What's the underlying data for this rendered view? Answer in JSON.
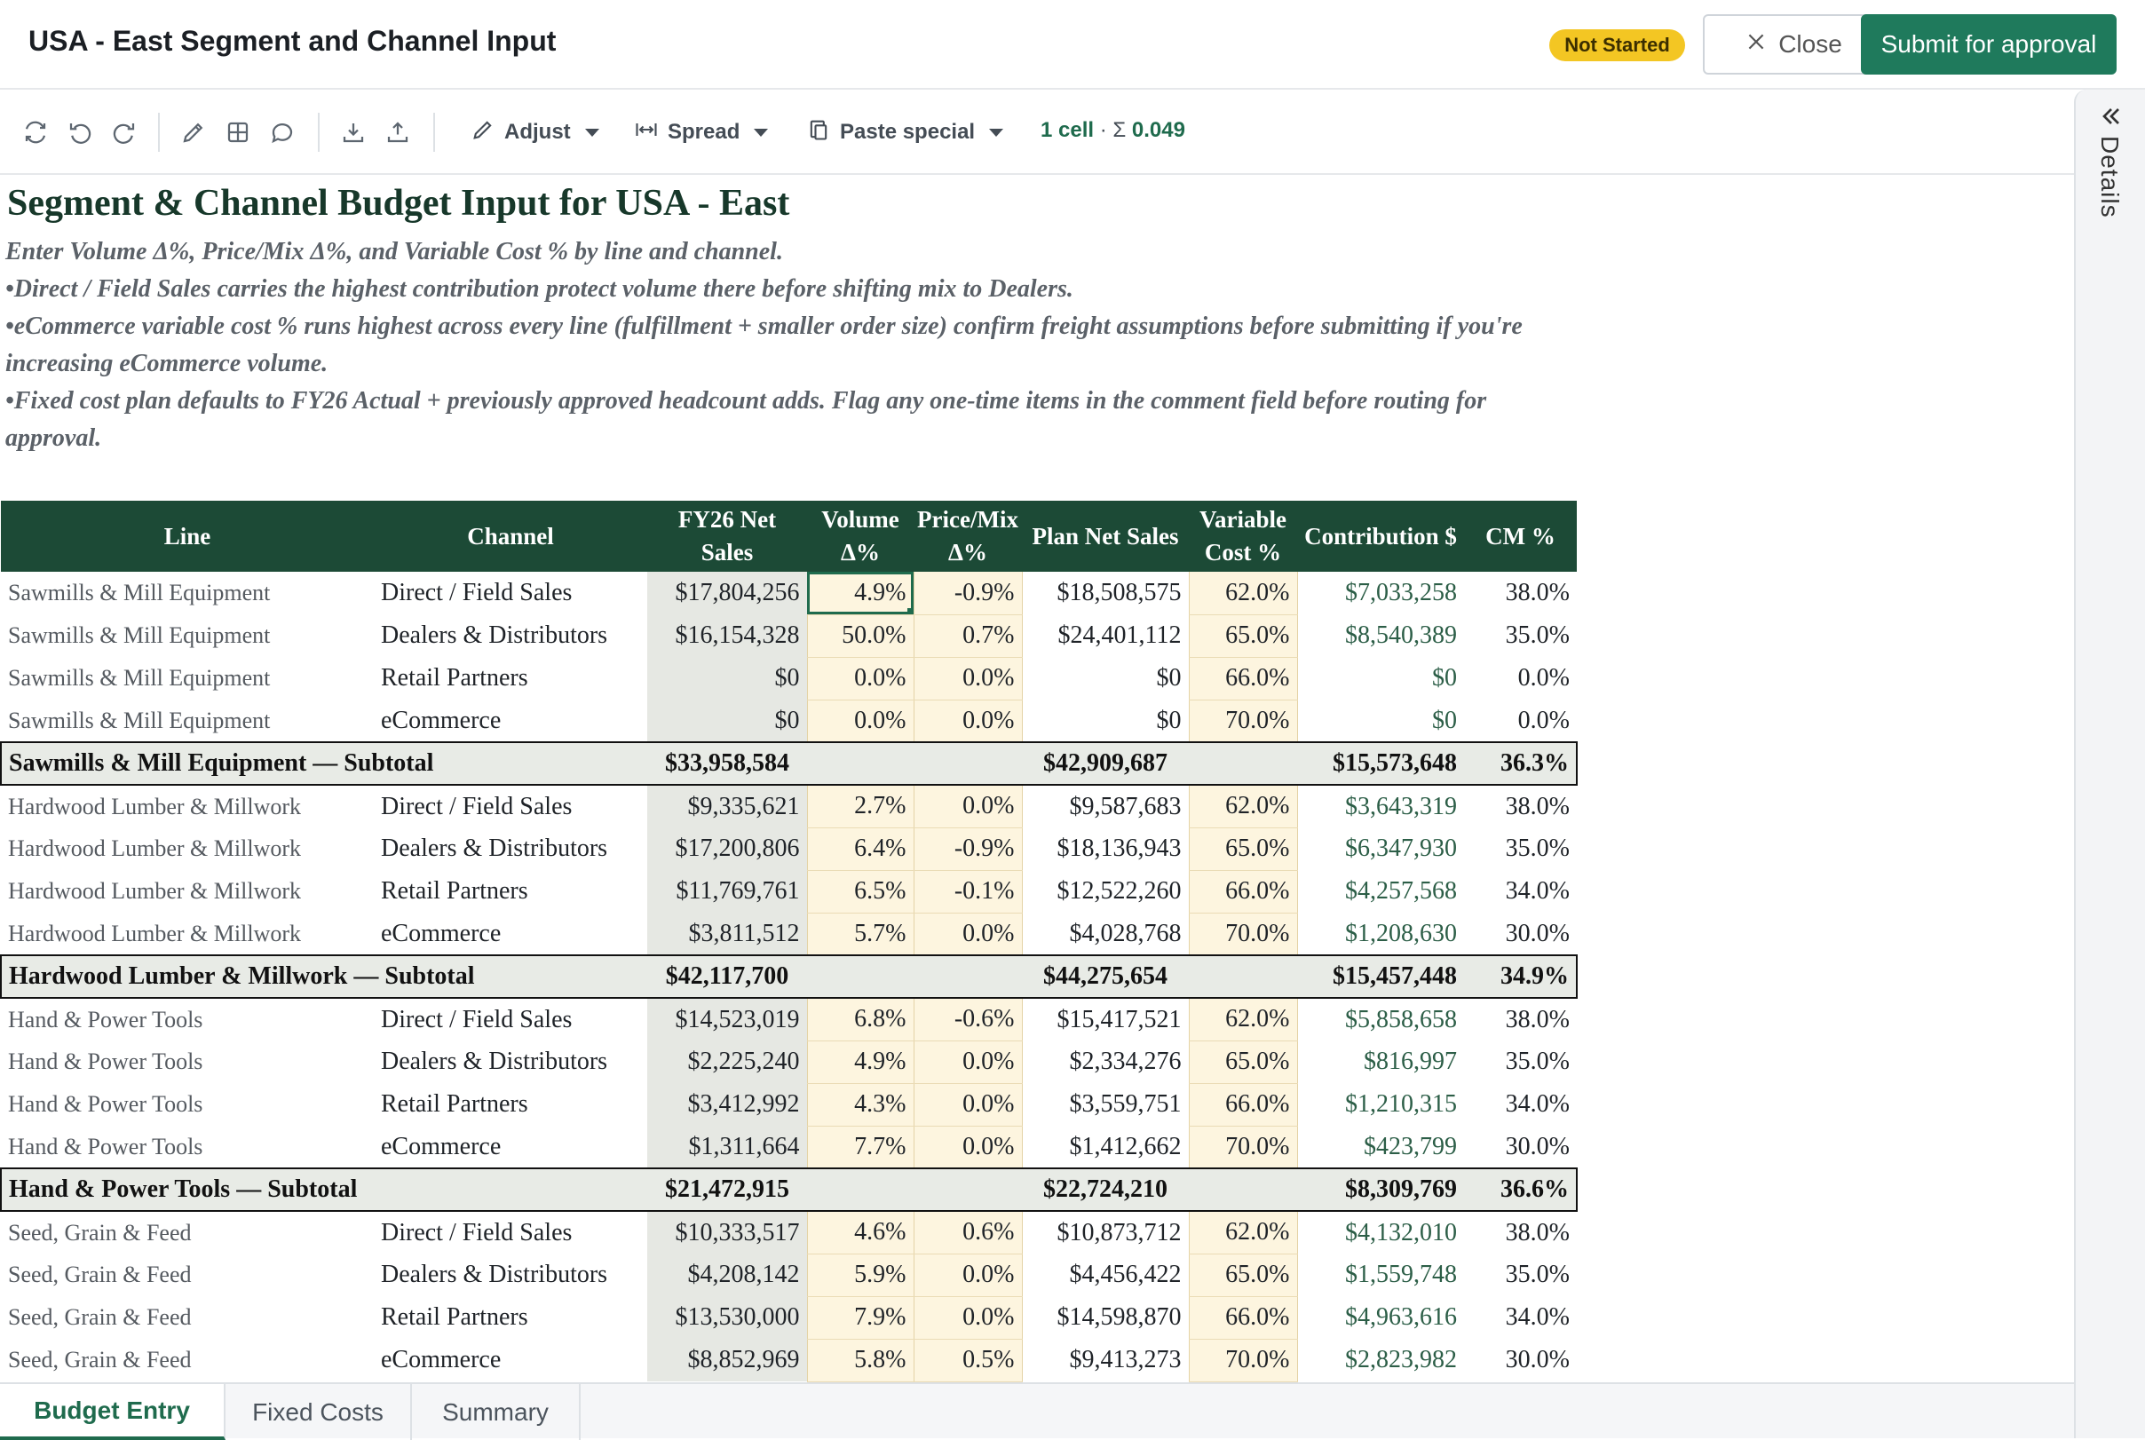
{
  "header": {
    "title": "USA - East Segment and Channel Input",
    "status_badge": "Not Started",
    "close_label": "Close",
    "submit_label": "Submit for approval"
  },
  "toolbar": {
    "adjust_label": "Adjust",
    "spread_label": "Spread",
    "paste_special_label": "Paste special",
    "selection_count": "1 cell",
    "selection_sum_prefix": " · Σ ",
    "selection_sum": "0.049"
  },
  "side_panel": {
    "label": "Details"
  },
  "doc": {
    "title": "Segment & Channel Budget Input for USA - East",
    "notes": [
      "Enter Volume Δ%, Price/Mix Δ%, and Variable Cost % by line and channel.",
      "•Direct / Field Sales carries the highest contribution protect volume there before shifting mix to Dealers.",
      "•eCommerce variable cost % runs highest across every line (fulfillment + smaller order size) confirm freight assumptions before submitting if you're increasing eCommerce volume.",
      "•Fixed cost plan defaults to FY26 Actual + previously approved headcount adds. Flag any one-time items in the comment field before routing for approval."
    ]
  },
  "table": {
    "columns": [
      "Line",
      "Channel",
      "FY26 Net Sales",
      "Volume Δ%",
      "Price/Mix Δ%",
      "Plan Net Sales",
      "Variable Cost %",
      "Contribution $",
      "CM %"
    ],
    "rows": [
      {
        "type": "row",
        "line": "Sawmills & Mill Equipment",
        "channel": "Direct / Field Sales",
        "fy26": "$17,804,256",
        "vol": "4.9%",
        "price": "-0.9%",
        "plan": "$18,508,575",
        "var": "62.0%",
        "contrib": "$7,033,258",
        "cm": "38.0%",
        "selected": true
      },
      {
        "type": "row",
        "line": "Sawmills & Mill Equipment",
        "channel": "Dealers & Distributors",
        "fy26": "$16,154,328",
        "vol": "50.0%",
        "price": "0.7%",
        "plan": "$24,401,112",
        "var": "65.0%",
        "contrib": "$8,540,389",
        "cm": "35.0%"
      },
      {
        "type": "row",
        "line": "Sawmills & Mill Equipment",
        "channel": "Retail Partners",
        "fy26": "$0",
        "vol": "0.0%",
        "price": "0.0%",
        "plan": "$0",
        "var": "66.0%",
        "contrib": "$0",
        "cm": "0.0%"
      },
      {
        "type": "row",
        "line": "Sawmills & Mill Equipment",
        "channel": "eCommerce",
        "fy26": "$0",
        "vol": "0.0%",
        "price": "0.0%",
        "plan": "$0",
        "var": "70.0%",
        "contrib": "$0",
        "cm": "0.0%"
      },
      {
        "type": "subtotal",
        "label": "Sawmills & Mill Equipment — Subtotal",
        "fy26": "$33,958,584",
        "plan": "$42,909,687",
        "contrib": "$15,573,648",
        "cm": "36.3%"
      },
      {
        "type": "row",
        "line": "Hardwood Lumber & Millwork",
        "channel": "Direct / Field Sales",
        "fy26": "$9,335,621",
        "vol": "2.7%",
        "price": "0.0%",
        "plan": "$9,587,683",
        "var": "62.0%",
        "contrib": "$3,643,319",
        "cm": "38.0%"
      },
      {
        "type": "row",
        "line": "Hardwood Lumber & Millwork",
        "channel": "Dealers & Distributors",
        "fy26": "$17,200,806",
        "vol": "6.4%",
        "price": "-0.9%",
        "plan": "$18,136,943",
        "var": "65.0%",
        "contrib": "$6,347,930",
        "cm": "35.0%"
      },
      {
        "type": "row",
        "line": "Hardwood Lumber & Millwork",
        "channel": "Retail Partners",
        "fy26": "$11,769,761",
        "vol": "6.5%",
        "price": "-0.1%",
        "plan": "$12,522,260",
        "var": "66.0%",
        "contrib": "$4,257,568",
        "cm": "34.0%"
      },
      {
        "type": "row",
        "line": "Hardwood Lumber & Millwork",
        "channel": "eCommerce",
        "fy26": "$3,811,512",
        "vol": "5.7%",
        "price": "0.0%",
        "plan": "$4,028,768",
        "var": "70.0%",
        "contrib": "$1,208,630",
        "cm": "30.0%"
      },
      {
        "type": "subtotal",
        "label": "Hardwood Lumber & Millwork — Subtotal",
        "fy26": "$42,117,700",
        "plan": "$44,275,654",
        "contrib": "$15,457,448",
        "cm": "34.9%"
      },
      {
        "type": "row",
        "line": "Hand & Power Tools",
        "channel": "Direct / Field Sales",
        "fy26": "$14,523,019",
        "vol": "6.8%",
        "price": "-0.6%",
        "plan": "$15,417,521",
        "var": "62.0%",
        "contrib": "$5,858,658",
        "cm": "38.0%"
      },
      {
        "type": "row",
        "line": "Hand & Power Tools",
        "channel": "Dealers & Distributors",
        "fy26": "$2,225,240",
        "vol": "4.9%",
        "price": "0.0%",
        "plan": "$2,334,276",
        "var": "65.0%",
        "contrib": "$816,997",
        "cm": "35.0%"
      },
      {
        "type": "row",
        "line": "Hand & Power Tools",
        "channel": "Retail Partners",
        "fy26": "$3,412,992",
        "vol": "4.3%",
        "price": "0.0%",
        "plan": "$3,559,751",
        "var": "66.0%",
        "contrib": "$1,210,315",
        "cm": "34.0%"
      },
      {
        "type": "row",
        "line": "Hand & Power Tools",
        "channel": "eCommerce",
        "fy26": "$1,311,664",
        "vol": "7.7%",
        "price": "0.0%",
        "plan": "$1,412,662",
        "var": "70.0%",
        "contrib": "$423,799",
        "cm": "30.0%"
      },
      {
        "type": "subtotal",
        "label": "Hand & Power Tools — Subtotal",
        "fy26": "$21,472,915",
        "plan": "$22,724,210",
        "contrib": "$8,309,769",
        "cm": "36.6%"
      },
      {
        "type": "row",
        "line": "Seed, Grain & Feed",
        "channel": "Direct / Field Sales",
        "fy26": "$10,333,517",
        "vol": "4.6%",
        "price": "0.6%",
        "plan": "$10,873,712",
        "var": "62.0%",
        "contrib": "$4,132,010",
        "cm": "38.0%"
      },
      {
        "type": "row",
        "line": "Seed, Grain & Feed",
        "channel": "Dealers & Distributors",
        "fy26": "$4,208,142",
        "vol": "5.9%",
        "price": "0.0%",
        "plan": "$4,456,422",
        "var": "65.0%",
        "contrib": "$1,559,748",
        "cm": "35.0%"
      },
      {
        "type": "row",
        "line": "Seed, Grain & Feed",
        "channel": "Retail Partners",
        "fy26": "$13,530,000",
        "vol": "7.9%",
        "price": "0.0%",
        "plan": "$14,598,870",
        "var": "66.0%",
        "contrib": "$4,963,616",
        "cm": "34.0%"
      },
      {
        "type": "row",
        "line": "Seed, Grain & Feed",
        "channel": "eCommerce",
        "fy26": "$8,852,969",
        "vol": "5.8%",
        "price": "0.5%",
        "plan": "$9,413,273",
        "var": "70.0%",
        "contrib": "$2,823,982",
        "cm": "30.0%"
      }
    ]
  },
  "tabs": [
    {
      "label": "Budget Entry",
      "active": true
    },
    {
      "label": "Fixed Costs",
      "active": false
    },
    {
      "label": "Summary",
      "active": false
    }
  ],
  "colors": {
    "accent": "#1f7a5c",
    "header_fill": "#1c4a36",
    "input_fill": "#fdf5df",
    "badge": "#f3c623"
  }
}
